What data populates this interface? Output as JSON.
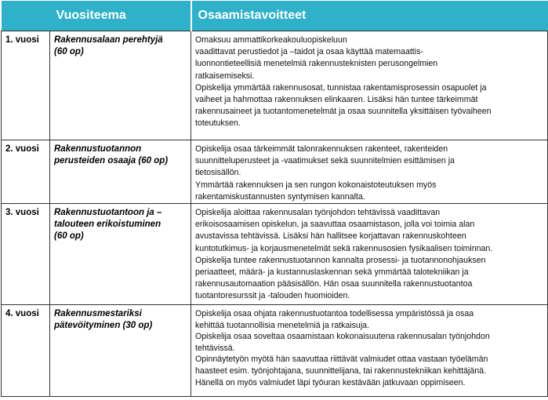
{
  "table": {
    "header": [
      "Vuositeema",
      "Osaamistavoitteet"
    ],
    "rows": [
      {
        "year": "1. vuosi",
        "theme": [
          "Rakennusalaan perehtyjä",
          "(60 op)"
        ],
        "goals": [
          "Omaksuu ammattikorkeakouluopiskeluun",
          "vaadittavat perustiedot ja –taidot ja osaa käyttää matemaattis-",
          "luonnontieteellisiä menetelmiä rakennusteknisten perusongelmien",
          "ratkaisemiseksi.",
          "Opiskelija ymmärtää rakennusosat, tunnistaa rakentamisprosessin  osapuolet ja",
          "vaiheet ja hahmottaa rakennuksen elinkaaren. Lisäksi hän tuntee tärkeimmät",
          "rakennusaineet ja tuotantomenetelmät  ja osaa suunnitella yksittäisen työvaiheen",
          "toteutuksen."
        ]
      },
      {
        "year": "2. vuosi",
        "theme": [
          "Rakennustuotannon",
          "perusteiden osaaja (60 op)"
        ],
        "goals": [
          "Opiskelija osaa tärkeimmät talonrakennuksen rakenteet, rakenteiden",
          "suunnitteluperusteet ja -vaatimukset sekä suunnitelmien esittämisen ja",
          "tietosisällön.",
          "Ymmärtää rakennuksen ja sen rungon kokonaistoteutuksen myös",
          "rakentamiskustannusten  syntymisen kannalta."
        ]
      },
      {
        "year": "3. vuosi",
        "theme": [
          "Rakennustuotantoon ja –",
          "talouteen erikoistuminen",
          "(60 op)"
        ],
        "goals": [
          "Opiskelija aloittaa rakennusalan työnjohdon tehtävissä vaadittavan",
          "erikoisosaamisen opiskelun, ja saavuttaa osaamistason, jolla voi toimia alan",
          "avustavissa tehtävissä. Lisäksi hän hallitsee korjattavan rakennuskohteen",
          "kuntotutkimus- ja korjausmenetelmät sekä rakennusosien fysikaalisen toiminnan.",
          "Opiskelija tuntee rakennustuotannon kannalta prosessi- ja tuotannonohjauksen",
          "periaatteet, määrä- ja kustannuslaskennan sekä ymmärtää talotekniikan ja",
          "rakennusautomaation pääsisällön. Hän osaa suunnitella rakennustuotantoa",
          "tuotantoresurssit ja -talouden huomioiden."
        ]
      },
      {
        "year": "4. vuosi",
        "theme": [
          "Rakennusmestariksi",
          "pätevöityminen (30 op)"
        ],
        "goals": [
          "Opiskelija osaa ohjata rakennustuotantoa todellisessa ympäristössä ja osaa",
          "kehittää tuotannollisia menetelmiä ja ratkaisuja.",
          "Opiskelija osaa soveltaa osaamistaan kokonaisuutena rakennusalan työnjohdon",
          "tehtävissä.",
          "Opinnäytetyön myötä hän saavuttaa riittävät valmiudet ottaa vastaan työelämän",
          "haasteet esim.  työnjohtajana, suunnittelijana, tai rakennustekniikan kehittäjänä.",
          "Hänellä on myös valmiudet läpi työuran kestävään jatkuvaan oppimiseen."
        ]
      }
    ]
  }
}
